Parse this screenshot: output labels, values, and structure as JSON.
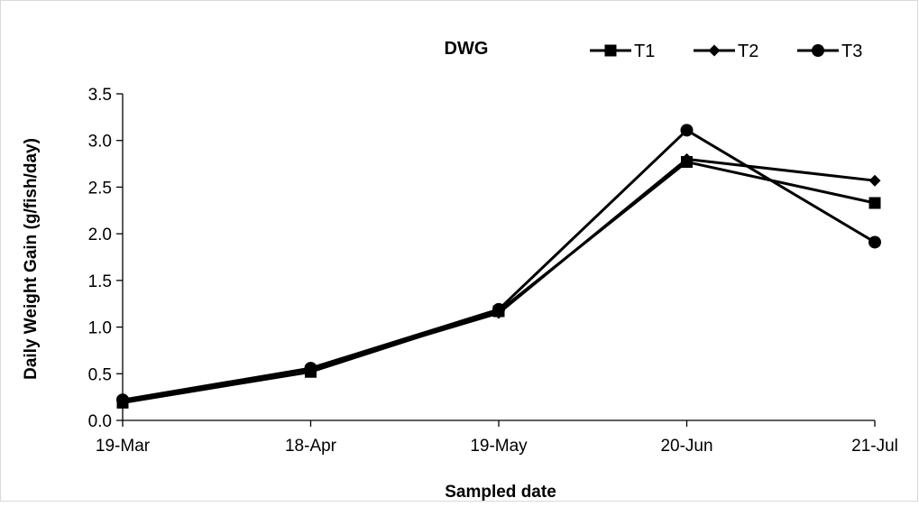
{
  "chart_data": {
    "type": "line",
    "title": "DWG",
    "xlabel": "Sampled date",
    "ylabel": "Daily Weight Gain (g/fish/day)",
    "categories": [
      "19-Mar",
      "18-Apr",
      "19-May",
      "20-Jun",
      "21-Jul"
    ],
    "ylim": [
      0,
      3.5
    ],
    "yticks": [
      "0.0",
      "0.5",
      "1.0",
      "1.5",
      "2.0",
      "2.5",
      "3.0",
      "3.5"
    ],
    "grid": false,
    "legend_position": "top-right",
    "line_color": "#000000",
    "series": [
      {
        "name": "T1",
        "marker": "square",
        "values": [
          0.19,
          0.52,
          1.17,
          2.77,
          2.33
        ]
      },
      {
        "name": "T2",
        "marker": "diamond",
        "values": [
          0.21,
          0.55,
          1.15,
          2.8,
          2.57
        ]
      },
      {
        "name": "T3",
        "marker": "circle",
        "values": [
          0.22,
          0.56,
          1.19,
          3.11,
          1.91
        ]
      }
    ]
  }
}
